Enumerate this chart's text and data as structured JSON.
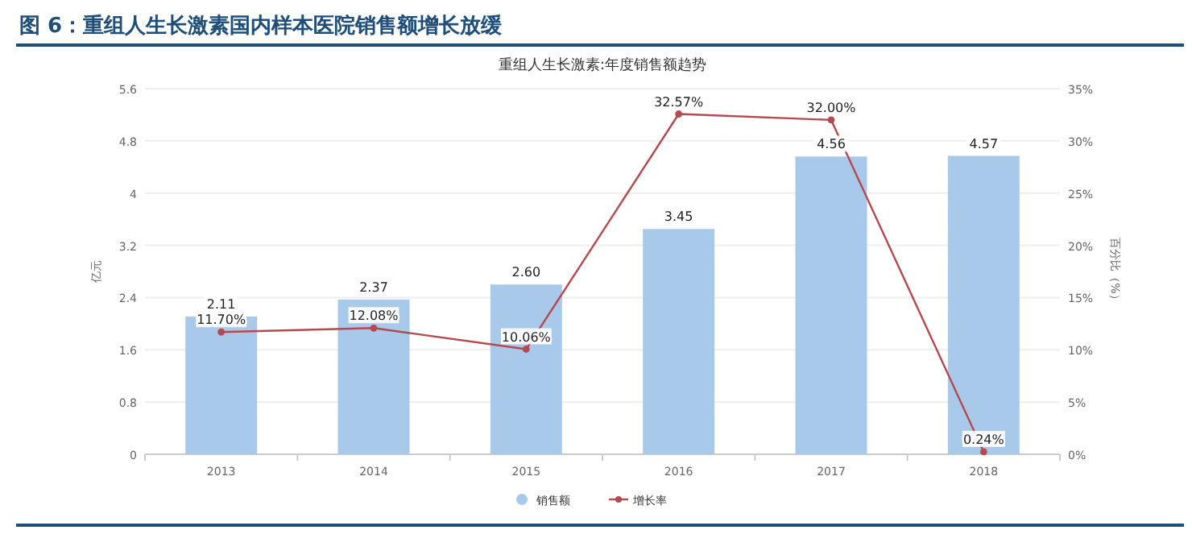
{
  "chart_data": {
    "type": "bar",
    "title": "图 6：重组人生长激素国内样本医院销售额增长放缓",
    "subtitle": "重组人生长激素:年度销售额趋势",
    "ylabel": "亿元",
    "y2label": "百分比（%）",
    "categories": [
      "2013",
      "2014",
      "2015",
      "2016",
      "2017",
      "2018"
    ],
    "series": [
      {
        "name": "销售额",
        "color": "#a8c9ea",
        "values": [
          2.11,
          2.37,
          2.6,
          3.45,
          4.56,
          4.57
        ],
        "value_labels": [
          "2.11",
          "2.37",
          "2.60",
          "3.45",
          "4.56",
          "4.57"
        ]
      },
      {
        "name": "增长率",
        "type": "line",
        "axis": "y2",
        "color": "#b5494f",
        "marker": "circle",
        "values": [
          11.7,
          12.08,
          10.06,
          32.57,
          32.0,
          0.24
        ],
        "value_labels": [
          "11.70%",
          "12.08%",
          "10.06%",
          "32.57%",
          "32.00%",
          "0.24%"
        ]
      }
    ],
    "ylim": [
      0,
      5.6
    ],
    "yticks": [
      0,
      0.8,
      1.6,
      2.4,
      3.2,
      4,
      4.8,
      5.6
    ],
    "y2lim": [
      0,
      35
    ],
    "y2ticks": [
      {
        "value": 0,
        "label": "0%"
      },
      {
        "value": 5,
        "label": "5%"
      },
      {
        "value": 10,
        "label": "10%"
      },
      {
        "value": 15,
        "label": "15%"
      },
      {
        "value": 20,
        "label": "20%"
      },
      {
        "value": 25,
        "label": "25%"
      },
      {
        "value": 30,
        "label": "30%"
      },
      {
        "value": 35,
        "label": "35%"
      }
    ],
    "grid": "y",
    "legend": "bottom"
  }
}
